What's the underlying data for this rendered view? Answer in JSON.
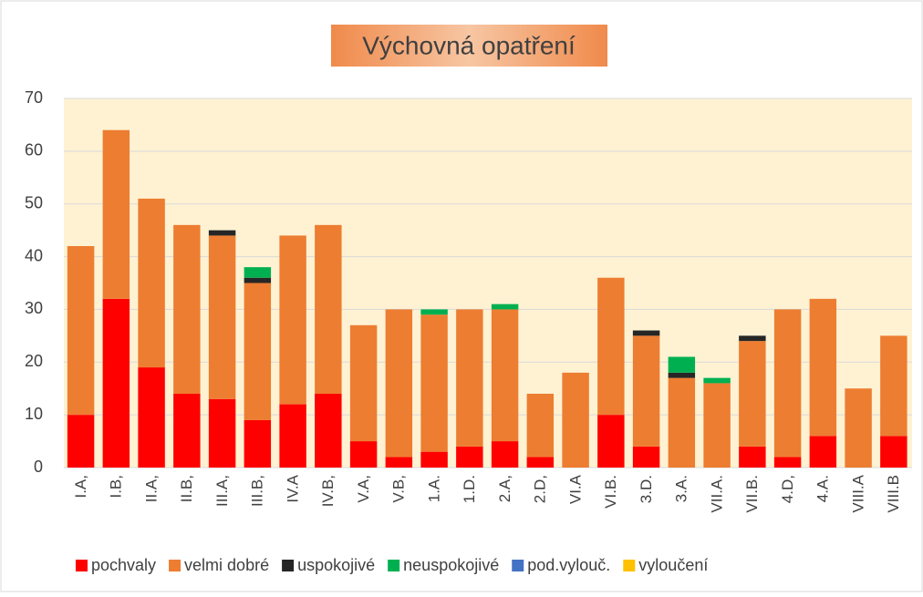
{
  "chart_data": {
    "type": "stacked_bar",
    "title": "Výchovná opatření",
    "categories": [
      "I.A,",
      "I.B,",
      "II.A,",
      "II.B,",
      "III.A,",
      "III.B,",
      "IV.A",
      "IV.B,",
      "V.A,",
      "V.B,",
      "1.A.",
      "1.D.",
      "2.A,",
      "2.D,",
      "VI.A",
      "VI.B.",
      "3.D.",
      "3.A.",
      "VII.A.",
      "VII.B.",
      "4.D,",
      "4.A.",
      "VIII.A",
      "VIII.B"
    ],
    "series": [
      {
        "name": "pochvaly",
        "color": "#ff0000",
        "values": [
          10,
          32,
          19,
          14,
          13,
          9,
          12,
          14,
          5,
          2,
          3,
          4,
          5,
          2,
          0,
          10,
          4,
          0,
          0,
          4,
          2,
          6,
          0,
          6
        ]
      },
      {
        "name": "velmi dobré",
        "color": "#ed7d31",
        "values": [
          32,
          32,
          32,
          32,
          31,
          26,
          32,
          32,
          22,
          28,
          26,
          26,
          25,
          12,
          18,
          26,
          21,
          17,
          16,
          20,
          28,
          26,
          15,
          19
        ]
      },
      {
        "name": "uspokojivé",
        "color": "#262626",
        "values": [
          0,
          0,
          0,
          0,
          1,
          1,
          0,
          0,
          0,
          0,
          0,
          0,
          0,
          0,
          0,
          0,
          1,
          1,
          0,
          1,
          0,
          0,
          0,
          0
        ]
      },
      {
        "name": "neuspokojivé",
        "color": "#00b050",
        "values": [
          0,
          0,
          0,
          0,
          0,
          2,
          0,
          0,
          0,
          0,
          1,
          0,
          1,
          0,
          0,
          0,
          0,
          3,
          1,
          0,
          0,
          0,
          0,
          0
        ]
      },
      {
        "name": "pod.vylouč.",
        "color": "#4472c4",
        "values": [
          0,
          0,
          0,
          0,
          0,
          0,
          0,
          0,
          0,
          0,
          0,
          0,
          0,
          0,
          0,
          0,
          0,
          0,
          0,
          0,
          0,
          0,
          0,
          0
        ]
      },
      {
        "name": "vyloučení",
        "color": "#ffc000",
        "values": [
          0,
          0,
          0,
          0,
          0,
          0,
          0,
          0,
          0,
          0,
          0,
          0,
          0,
          0,
          0,
          0,
          0,
          0,
          0,
          0,
          0,
          0,
          0,
          0
        ]
      }
    ],
    "ylim": [
      0,
      70
    ],
    "yticks": [
      0,
      10,
      20,
      30,
      40,
      50,
      60,
      70
    ],
    "grid": true,
    "legend": "bottom"
  }
}
